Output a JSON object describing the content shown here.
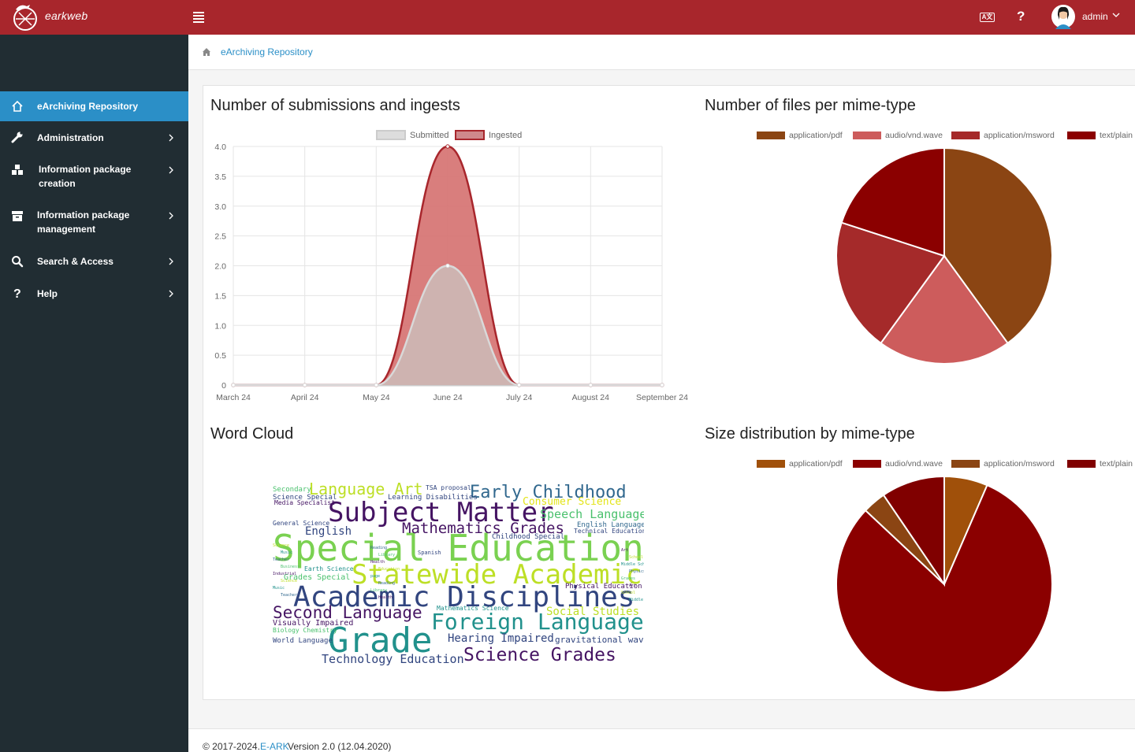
{
  "app": {
    "brand": "earkweb",
    "user": "admin"
  },
  "sidebar": {
    "items": [
      {
        "label": "eArchiving Repository",
        "icon": "home-icon",
        "active": true
      },
      {
        "label": "Administration",
        "icon": "wrench-icon"
      },
      {
        "label": "Information package creation",
        "icon": "boxes-icon"
      },
      {
        "label": "Information package management",
        "icon": "archive-box-icon"
      },
      {
        "label": "Search & Access",
        "icon": "search-icon"
      },
      {
        "label": "Help",
        "icon": "question-icon"
      }
    ]
  },
  "breadcrumb": {
    "current": "eArchiving Repository"
  },
  "charts": {
    "submissions_title": "Number of submissions and ingests",
    "files_title": "Number of files per mime-type",
    "wordcloud_title": "Word Cloud",
    "size_title": "Size distribution by mime-type"
  },
  "footer": {
    "copyright": "© 2017-2024.",
    "link": "E-ARK",
    "version": "Version 2.0 (12.04.2020)"
  },
  "chart_data": [
    {
      "type": "area",
      "title": "Number of submissions and ingests",
      "categories": [
        "March 24",
        "April 24",
        "May 24",
        "June 24",
        "July 24",
        "August 24",
        "September 24"
      ],
      "series": [
        {
          "name": "Submitted",
          "values": [
            0,
            0,
            0,
            2,
            0,
            0,
            0
          ],
          "color": "#d9d9d9"
        },
        {
          "name": "Ingested",
          "values": [
            0,
            0,
            0,
            4,
            0,
            0,
            0
          ],
          "color": "#a8262c"
        }
      ],
      "ylim": [
        0,
        4
      ],
      "yticks": [
        "4.0",
        "3.5",
        "3.0",
        "2.5",
        "2.0",
        "1.5",
        "1.0",
        "0.5",
        "0"
      ],
      "legend": "top"
    },
    {
      "type": "pie",
      "title": "Number of files per mime-type",
      "labels": [
        "application/pdf",
        "audio/vnd.wave",
        "application/msword",
        "text/plain"
      ],
      "values": [
        2,
        1,
        1,
        1
      ],
      "colors": [
        "#8b4513",
        "#cd5c5c",
        "#a52a2a",
        "#8b0000"
      ],
      "legend": "top"
    },
    {
      "type": "pie",
      "title": "Size distribution by mime-type",
      "labels": [
        "application/pdf",
        "audio/vnd.wave",
        "application/msword",
        "text/plain"
      ],
      "values": [
        6.5,
        80.5,
        3.5,
        9.5
      ],
      "colors": [
        "#a0500a",
        "#8b0000",
        "#8b4513",
        "#800000"
      ],
      "legend": "top"
    }
  ],
  "wordcloud": {
    "words": [
      "Special Education",
      "Academic Disciplines",
      "Subject Matter",
      "Grade",
      "Statewide Academic",
      "Foreign Language",
      "Early Childhood",
      "Mathematics Grades",
      "Science Grades",
      "Second Language",
      "Language Art",
      "Technology Education",
      "Speech Language",
      "Social Studies",
      "Hearing Impaired",
      "Consumer Science",
      "English",
      "Visually Impaired",
      "Secondary",
      "Science Special",
      "gravitational wave",
      "Learning Disabilities",
      "Physical Education",
      "World Language",
      "Grades Special",
      "Biology Chemistry",
      "Mathematics Science",
      "English Language",
      "Childhood Special",
      "Earth Science",
      "General Science",
      "Media Specialist",
      "Technical Education",
      "TSA proposal",
      "Spanish"
    ]
  }
}
